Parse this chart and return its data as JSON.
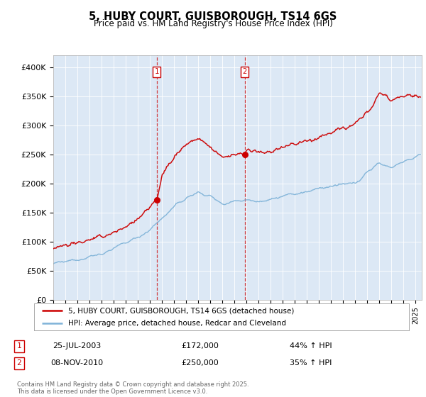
{
  "title1": "5, HUBY COURT, GUISBOROUGH, TS14 6GS",
  "title2": "Price paid vs. HM Land Registry's House Price Index (HPI)",
  "legend_red": "5, HUBY COURT, GUISBOROUGH, TS14 6GS (detached house)",
  "legend_blue": "HPI: Average price, detached house, Redcar and Cleveland",
  "annotation1_date": "25-JUL-2003",
  "annotation1_price": "£172,000",
  "annotation1_hpi": "44% ↑ HPI",
  "annotation2_date": "08-NOV-2010",
  "annotation2_price": "£250,000",
  "annotation2_hpi": "35% ↑ HPI",
  "sale1_year": 2003.56,
  "sale1_price": 172000,
  "sale2_year": 2010.85,
  "sale2_price": 250000,
  "vline1_x": 2003.56,
  "vline2_x": 2010.85,
  "ylabel_ticks": [
    "£0",
    "£50K",
    "£100K",
    "£150K",
    "£200K",
    "£250K",
    "£300K",
    "£350K",
    "£400K"
  ],
  "ylabel_values": [
    0,
    50000,
    100000,
    150000,
    200000,
    250000,
    300000,
    350000,
    400000
  ],
  "xmin": 1995.0,
  "xmax": 2025.5,
  "ymin": 0,
  "ymax": 420000,
  "bg_color": "#dce8f5",
  "footer": "Contains HM Land Registry data © Crown copyright and database right 2025.\nThis data is licensed under the Open Government Licence v3.0.",
  "red_color": "#cc0000",
  "blue_color": "#7fb3d8",
  "vline_color": "#cc0000"
}
